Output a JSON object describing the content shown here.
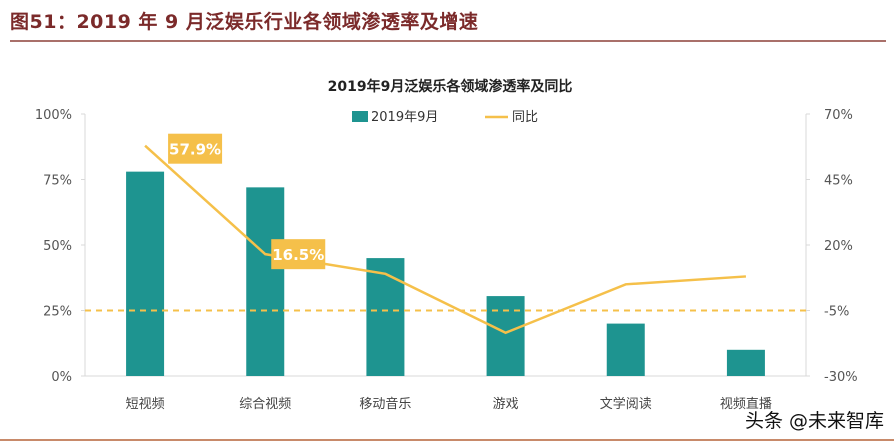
{
  "figure_title": "图51：2019 年 9 月泛娱乐行业各领域渗透率及增速",
  "watermark": "头条 @未来智库",
  "colors": {
    "bar": "#1e9490",
    "line": "#f5c04a",
    "title": "#7b2a2a",
    "axis_text": "#555555"
  },
  "chart_data": {
    "type": "bar+line",
    "title": "2019年9月泛娱乐各领域渗透率及同比",
    "categories": [
      "短视频",
      "综合视频",
      "移动音乐",
      "游戏",
      "文学阅读",
      "视频直播"
    ],
    "series": [
      {
        "name": "2019年9月",
        "type": "bar",
        "axis": "left",
        "values": [
          78,
          72,
          45,
          30.5,
          20,
          10
        ]
      },
      {
        "name": "同比",
        "type": "line",
        "axis": "right",
        "values": [
          57.9,
          16.5,
          9,
          -13.5,
          5,
          8
        ]
      }
    ],
    "data_labels": [
      {
        "category": "短视频",
        "text": "57.9%"
      },
      {
        "category": "综合视频",
        "text": "16.5%"
      }
    ],
    "left_axis": {
      "ylim": [
        0,
        100
      ],
      "ticks": [
        "0%",
        "25%",
        "50%",
        "75%",
        "100%"
      ],
      "tick_values": [
        0,
        25,
        50,
        75,
        100
      ]
    },
    "right_axis": {
      "ylim": [
        -30,
        70
      ],
      "ticks": [
        "-30%",
        "-5%",
        "20%",
        "45%",
        "70%"
      ],
      "tick_values": [
        -30,
        -5,
        20,
        45,
        70
      ]
    },
    "reference_line": {
      "axis": "right",
      "value": -5,
      "style": "dashed"
    },
    "legend": "top-center",
    "grid": false
  }
}
